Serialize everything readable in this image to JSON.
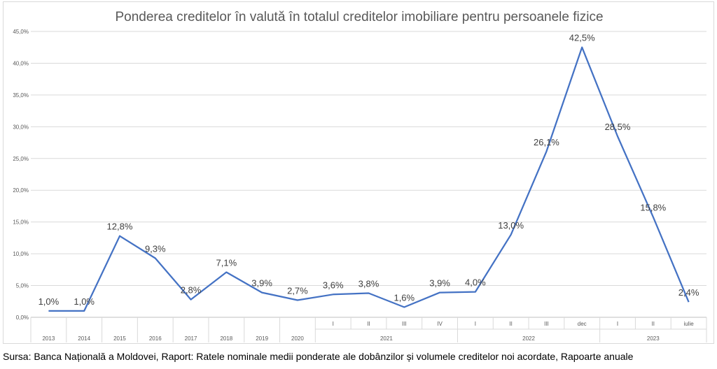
{
  "chart_data": {
    "type": "line",
    "title": "Ponderea creditelor în valută în totalul creditelor imobiliare pentru persoanele fizice",
    "xlabel": "",
    "ylabel": "",
    "ylim": [
      0,
      45
    ],
    "y_ticks": [
      "0,0%",
      "5,0%",
      "10,0%",
      "15,0%",
      "20,0%",
      "25,0%",
      "30,0%",
      "35,0%",
      "40,0%",
      "45,0%"
    ],
    "y_tick_values": [
      0,
      5,
      10,
      15,
      20,
      25,
      30,
      35,
      40,
      45
    ],
    "grid": true,
    "legend": "none",
    "line_color": "#4472c4",
    "categories": [
      "2013",
      "2014",
      "2015",
      "2016",
      "2017",
      "2018",
      "2019",
      "2020",
      "I",
      "II",
      "III",
      "IV",
      "I",
      "II",
      "III",
      "dec",
      "I",
      "II",
      "iulie"
    ],
    "groups": [
      {
        "label": "2021",
        "start": 8,
        "end": 11
      },
      {
        "label": "2022",
        "start": 12,
        "end": 15
      },
      {
        "label": "2023",
        "start": 16,
        "end": 18
      }
    ],
    "series": [
      {
        "values": [
          1.0,
          1.0,
          12.8,
          9.3,
          2.8,
          7.1,
          3.9,
          2.7,
          3.6,
          3.8,
          1.6,
          3.9,
          4.0,
          13.0,
          26.1,
          42.5,
          28.5,
          15.8,
          2.4
        ]
      }
    ],
    "data_labels": [
      "1,0%",
      "1,0%",
      "12,8%",
      "9,3%",
      "2,8%",
      "7,1%",
      "3,9%",
      "2,7%",
      "3,6%",
      "3,8%",
      "1,6%",
      "3,9%",
      "4,0%",
      "13,0%",
      "26,1%",
      "42,5%",
      "28,5%",
      "15,8%",
      "2,4%"
    ]
  },
  "source": "Sursa: Banca Națională a Moldovei, Raport: Ratele nominale medii ponderate ale dobânzilor și volumele creditelor noi acordate, Rapoarte anuale"
}
